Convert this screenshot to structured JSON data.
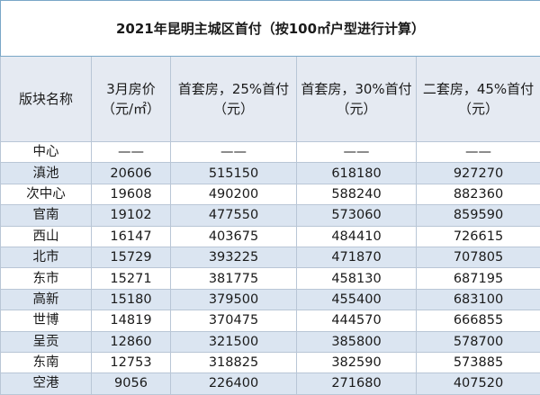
{
  "title": "2021年昆明主城区首付（按100㎡户型进行计算）",
  "headers": [
    [
      "版块名称"
    ],
    [
      "3月房价",
      "（元/㎡）"
    ],
    [
      "首套房，25%首付",
      "（元）"
    ],
    [
      "首套房，30%首付",
      "（元）"
    ],
    [
      "二套房，45%首付",
      "（元）"
    ]
  ],
  "rows": [
    [
      "中心",
      "——",
      "——",
      "——",
      "——"
    ],
    [
      "滇池",
      "20606",
      "515150",
      "618180",
      "927270"
    ],
    [
      "次中心",
      "19608",
      "490200",
      "588240",
      "882360"
    ],
    [
      "官南",
      "19102",
      "477550",
      "573060",
      "859590"
    ],
    [
      "西山",
      "16147",
      "403675",
      "484410",
      "726615"
    ],
    [
      "北市",
      "15729",
      "393225",
      "471870",
      "707805"
    ],
    [
      "东市",
      "15271",
      "381775",
      "458130",
      "687195"
    ],
    [
      "高新",
      "15180",
      "379500",
      "455400",
      "683100"
    ],
    [
      "世博",
      "14819",
      "370475",
      "444570",
      "666855"
    ],
    [
      "呈贡",
      "12860",
      "321500",
      "385800",
      "578700"
    ],
    [
      "东南",
      "12753",
      "318825",
      "382590",
      "573885"
    ],
    [
      "空港",
      "9056",
      "226400",
      "271680",
      "407520"
    ]
  ]
}
